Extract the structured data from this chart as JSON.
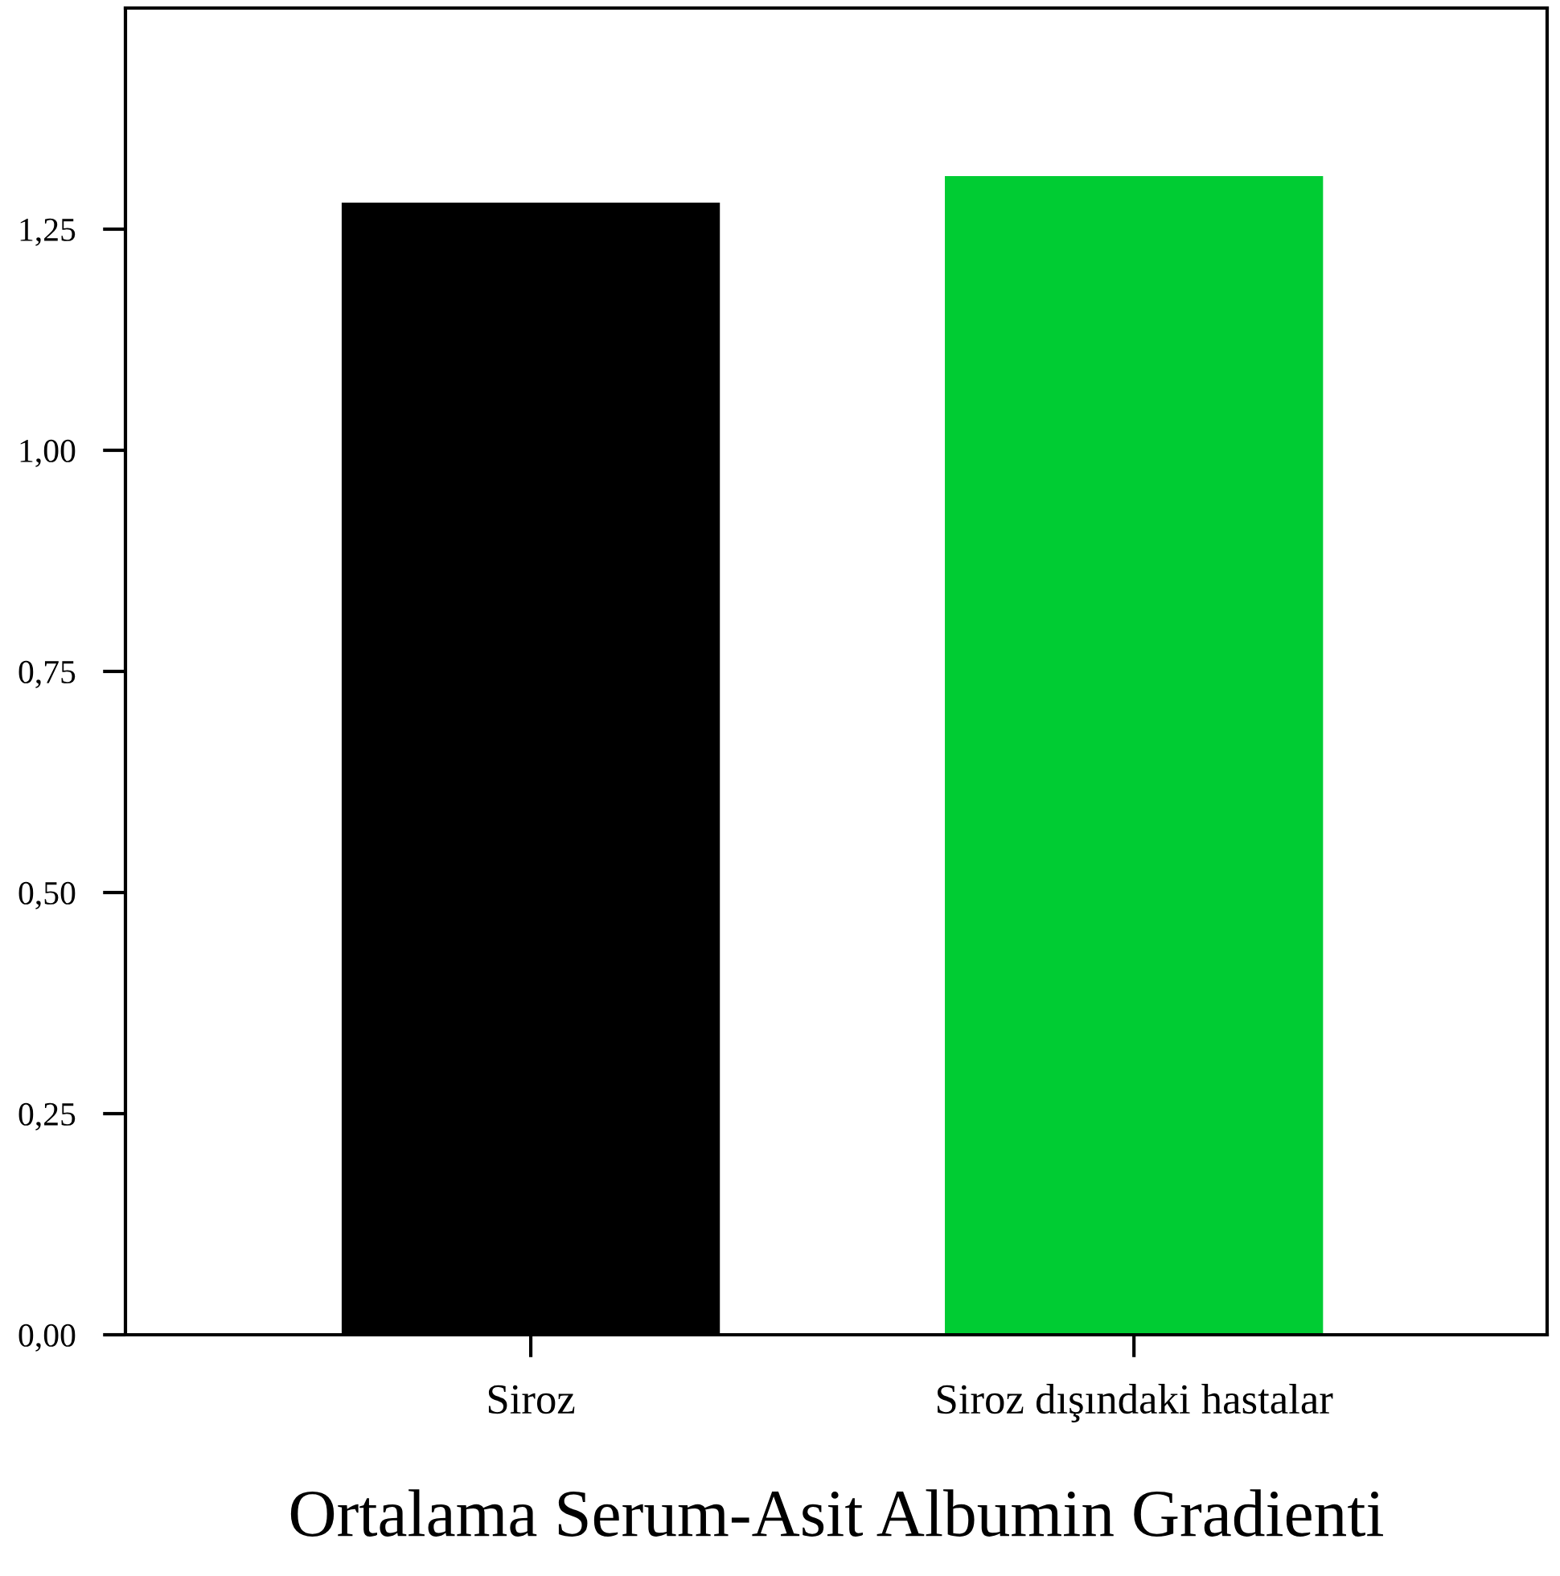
{
  "chart_data": {
    "type": "bar",
    "xlabel": "Ortalama Serum-Asit Albumin Gradienti",
    "categories": [
      "Siroz",
      "Siroz dışındaki hastalar"
    ],
    "values": [
      1.28,
      1.31
    ],
    "colors": [
      "#000000",
      "#00cc33"
    ],
    "ylim": [
      0,
      1.5
    ],
    "yticks": [
      {
        "value": 0,
        "label": "0,00"
      },
      {
        "value": 0.25,
        "label": "0,25"
      },
      {
        "value": 0.5,
        "label": "0,50"
      },
      {
        "value": 0.75,
        "label": "0,75"
      },
      {
        "value": 1.0,
        "label": "1,00"
      },
      {
        "value": 1.25,
        "label": "1,25"
      }
    ],
    "grid": false
  }
}
